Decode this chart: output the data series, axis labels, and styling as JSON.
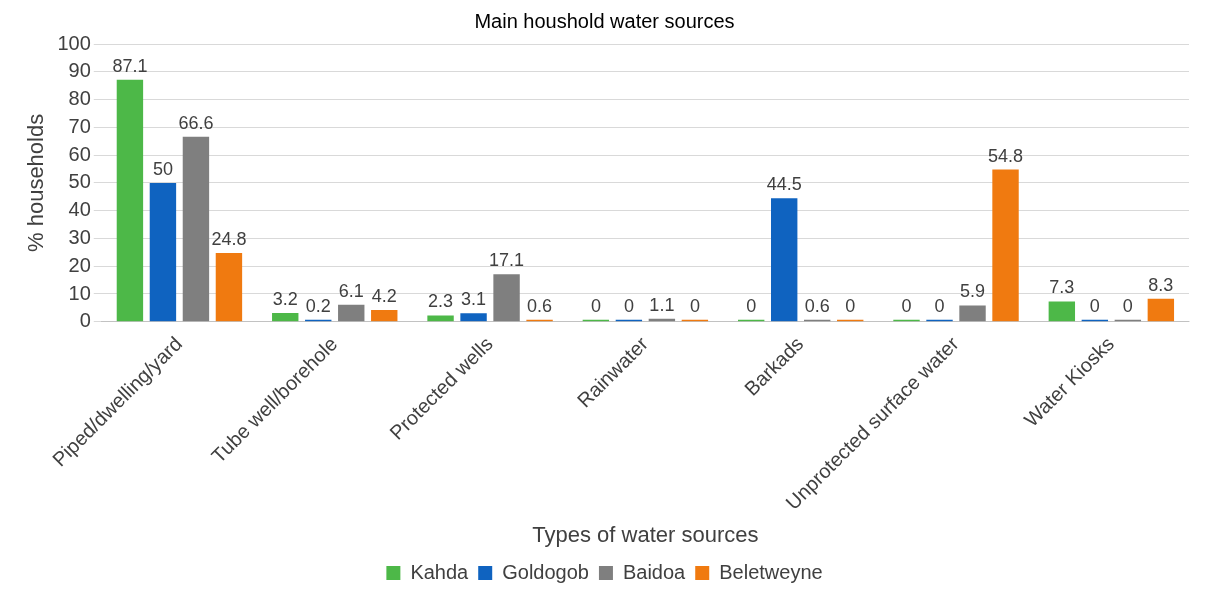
{
  "chart_data": {
    "type": "bar",
    "title": "Main houshold water sources",
    "xlabel": "Types of water sources",
    "ylabel": "% households",
    "categories": [
      "Piped/dwelling/yard",
      "Tube well/borehole",
      "Protected wells",
      "Rainwater",
      "Barkads",
      "Unprotected surface water",
      "Water Kiosks"
    ],
    "series": [
      {
        "name": "Kahda",
        "color": "#4db848",
        "values": [
          87.1,
          3.2,
          2.3,
          0,
          0,
          0,
          7.3
        ]
      },
      {
        "name": "Goldogob",
        "color": "#0f63c0",
        "values": [
          50,
          0.2,
          3.1,
          0,
          44.5,
          0,
          0
        ]
      },
      {
        "name": "Baidoa",
        "color": "#7f7f7f",
        "values": [
          66.6,
          6.1,
          17.1,
          1.1,
          0.6,
          5.9,
          0
        ]
      },
      {
        "name": "Beletweyne",
        "color": "#f07a10",
        "values": [
          24.8,
          4.2,
          0.6,
          0,
          0,
          54.8,
          8.3
        ]
      }
    ],
    "ylim": [
      0,
      100
    ],
    "yticks": [
      0,
      10,
      20,
      30,
      40,
      50,
      60,
      70,
      80,
      90,
      100
    ],
    "grid": "y",
    "legend": "bottom",
    "data_labels": true
  }
}
